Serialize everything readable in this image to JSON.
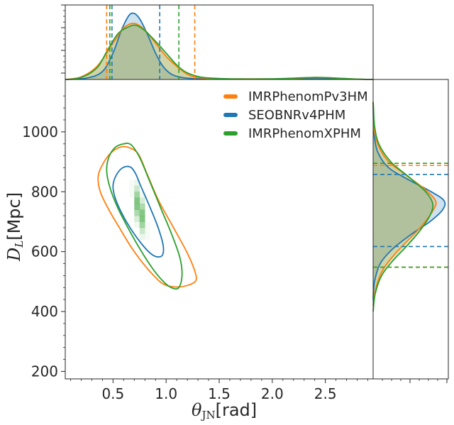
{
  "chart_data": {
    "type": "corner_plot",
    "xlabel": {
      "symbol": "θ",
      "subscript": "JN",
      "unit": "[rad]"
    },
    "ylabel": {
      "symbol": "D",
      "subscript": "L",
      "unit": "[Mpc]"
    },
    "xlim": [
      0.05,
      2.95
    ],
    "ylim": [
      175,
      1175
    ],
    "x_ticks": [
      0.5,
      1.0,
      1.5,
      2.0,
      2.5
    ],
    "x_tick_labels": [
      "0.5",
      "1.0",
      "1.5",
      "2.0",
      "2.5"
    ],
    "y_ticks": [
      200,
      400,
      600,
      800,
      1000
    ],
    "y_tick_labels": [
      "200",
      "400",
      "600",
      "800",
      "1000"
    ],
    "legend_position": "top-right",
    "series": [
      {
        "name": "IMRPhenomPv3HM",
        "color": "#ff7f0e",
        "theta_interval": [
          0.44,
          1.27
        ],
        "dl_interval": [
          548,
          888
        ],
        "contour": [
          [
            0.66,
            946
          ],
          [
            0.58,
            950
          ],
          [
            0.48,
            930
          ],
          [
            0.4,
            890
          ],
          [
            0.36,
            850
          ],
          [
            0.38,
            800
          ],
          [
            0.46,
            740
          ],
          [
            0.56,
            680
          ],
          [
            0.68,
            610
          ],
          [
            0.82,
            545
          ],
          [
            0.96,
            495
          ],
          [
            1.08,
            482
          ],
          [
            1.2,
            487
          ],
          [
            1.28,
            503
          ],
          [
            1.27,
            535
          ],
          [
            1.2,
            595
          ],
          [
            1.07,
            680
          ],
          [
            0.93,
            770
          ],
          [
            0.82,
            860
          ],
          [
            0.74,
            925
          ]
        ],
        "theta_marginal": [
          [
            0.05,
            0
          ],
          [
            0.2,
            0.04
          ],
          [
            0.35,
            0.2
          ],
          [
            0.5,
            0.55
          ],
          [
            0.6,
            0.78
          ],
          [
            0.7,
            0.85
          ],
          [
            0.8,
            0.75
          ],
          [
            0.9,
            0.55
          ],
          [
            1.0,
            0.35
          ],
          [
            1.1,
            0.2
          ],
          [
            1.2,
            0.08
          ],
          [
            1.3,
            0.03
          ],
          [
            1.5,
            0.01
          ],
          [
            1.8,
            0.01
          ],
          [
            2.1,
            0.01
          ],
          [
            2.4,
            0.03
          ],
          [
            2.6,
            0.02
          ],
          [
            2.8,
            0.005
          ],
          [
            2.95,
            0
          ]
        ],
        "dl_marginal": [
          [
            420,
            0
          ],
          [
            480,
            0.04
          ],
          [
            540,
            0.14
          ],
          [
            590,
            0.3
          ],
          [
            640,
            0.5
          ],
          [
            690,
            0.7
          ],
          [
            740,
            0.85
          ],
          [
            770,
            0.88
          ],
          [
            810,
            0.72
          ],
          [
            860,
            0.44
          ],
          [
            900,
            0.22
          ],
          [
            950,
            0.08
          ],
          [
            1000,
            0.02
          ],
          [
            1060,
            0.005
          ],
          [
            1100,
            0
          ]
        ]
      },
      {
        "name": "SEOBNRv4PHM",
        "color": "#1f77b4",
        "theta_interval": [
          0.49,
          0.94
        ],
        "dl_interval": [
          617,
          858
        ],
        "contour": [
          [
            0.66,
            883
          ],
          [
            0.59,
            880
          ],
          [
            0.53,
            855
          ],
          [
            0.5,
            820
          ],
          [
            0.52,
            780
          ],
          [
            0.58,
            730
          ],
          [
            0.66,
            680
          ],
          [
            0.76,
            630
          ],
          [
            0.86,
            592
          ],
          [
            0.93,
            582
          ],
          [
            0.97,
            592
          ],
          [
            0.97,
            625
          ],
          [
            0.92,
            685
          ],
          [
            0.84,
            755
          ],
          [
            0.76,
            820
          ],
          [
            0.71,
            862
          ]
        ],
        "theta_marginal": [
          [
            0.05,
            0
          ],
          [
            0.25,
            0.02
          ],
          [
            0.4,
            0.12
          ],
          [
            0.5,
            0.4
          ],
          [
            0.58,
            0.75
          ],
          [
            0.65,
            0.97
          ],
          [
            0.7,
            1.0
          ],
          [
            0.75,
            0.92
          ],
          [
            0.82,
            0.7
          ],
          [
            0.9,
            0.4
          ],
          [
            0.97,
            0.2
          ],
          [
            1.05,
            0.08
          ],
          [
            1.15,
            0.03
          ],
          [
            1.3,
            0.01
          ],
          [
            1.6,
            0.005
          ],
          [
            2.0,
            0.005
          ],
          [
            2.4,
            0.01
          ],
          [
            2.7,
            0.005
          ],
          [
            2.95,
            0
          ]
        ],
        "dl_marginal": [
          [
            440,
            0
          ],
          [
            500,
            0.02
          ],
          [
            560,
            0.1
          ],
          [
            610,
            0.28
          ],
          [
            660,
            0.55
          ],
          [
            700,
            0.8
          ],
          [
            740,
            0.98
          ],
          [
            770,
            1.0
          ],
          [
            800,
            0.82
          ],
          [
            840,
            0.5
          ],
          [
            880,
            0.22
          ],
          [
            930,
            0.07
          ],
          [
            990,
            0.015
          ],
          [
            1060,
            0.002
          ],
          [
            1100,
            0
          ]
        ]
      },
      {
        "name": "IMRPhenomXPHM",
        "color": "#2ca02c",
        "theta_interval": [
          0.47,
          1.12
        ],
        "dl_interval": [
          548,
          895
        ],
        "contour": [
          [
            0.67,
            957
          ],
          [
            0.6,
            960
          ],
          [
            0.52,
            948
          ],
          [
            0.46,
            915
          ],
          [
            0.44,
            870
          ],
          [
            0.47,
            815
          ],
          [
            0.54,
            750
          ],
          [
            0.64,
            680
          ],
          [
            0.76,
            605
          ],
          [
            0.88,
            540
          ],
          [
            0.98,
            498
          ],
          [
            1.06,
            478
          ],
          [
            1.12,
            480
          ],
          [
            1.15,
            520
          ],
          [
            1.13,
            580
          ],
          [
            1.05,
            660
          ],
          [
            0.95,
            745
          ],
          [
            0.84,
            840
          ],
          [
            0.75,
            915
          ]
        ],
        "theta_marginal": [
          [
            0.05,
            0
          ],
          [
            0.2,
            0.03
          ],
          [
            0.35,
            0.18
          ],
          [
            0.45,
            0.45
          ],
          [
            0.55,
            0.7
          ],
          [
            0.65,
            0.8
          ],
          [
            0.72,
            0.82
          ],
          [
            0.8,
            0.74
          ],
          [
            0.9,
            0.58
          ],
          [
            1.0,
            0.4
          ],
          [
            1.1,
            0.22
          ],
          [
            1.2,
            0.1
          ],
          [
            1.35,
            0.03
          ],
          [
            1.6,
            0.01
          ],
          [
            2.0,
            0.01
          ],
          [
            2.4,
            0.03
          ],
          [
            2.6,
            0.02
          ],
          [
            2.8,
            0.005
          ],
          [
            2.95,
            0
          ]
        ],
        "dl_marginal": [
          [
            400,
            0
          ],
          [
            460,
            0.03
          ],
          [
            520,
            0.12
          ],
          [
            570,
            0.28
          ],
          [
            620,
            0.48
          ],
          [
            670,
            0.66
          ],
          [
            720,
            0.8
          ],
          [
            760,
            0.84
          ],
          [
            800,
            0.74
          ],
          [
            850,
            0.5
          ],
          [
            900,
            0.25
          ],
          [
            960,
            0.08
          ],
          [
            1020,
            0.02
          ],
          [
            1080,
            0.005
          ],
          [
            1100,
            0
          ]
        ]
      }
    ],
    "histogram": {
      "color": "#2ca02c",
      "center": [
        0.75,
        740
      ],
      "sigma_u": 0.12,
      "sigma_v": 0.045,
      "bin_theta": 0.05,
      "bin_dl": 20
    }
  }
}
